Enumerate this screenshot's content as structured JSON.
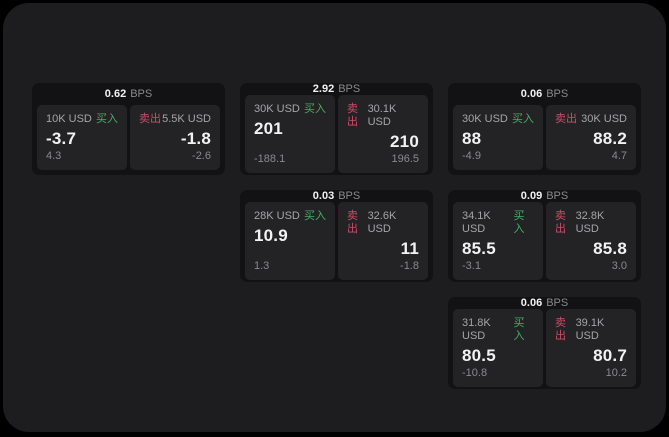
{
  "labels": {
    "bps_unit": "BPS",
    "buy": "买入",
    "sell": "卖出"
  },
  "colors": {
    "page_bg": "#000000",
    "panel_bg": "#1d1d1f",
    "card_bg": "#121214",
    "subpanel_bg": "#232326",
    "text_primary": "#f2f2f3",
    "text_secondary": "#a5a5a8",
    "text_muted": "#8a8a8e",
    "buy": "#3fb15f",
    "sell": "#cf4b66"
  },
  "cards": [
    {
      "col": 1,
      "row": 1,
      "bps": "0.62",
      "buy": {
        "amount": "10K USD",
        "value": "-3.7",
        "delta": "4.3"
      },
      "sell": {
        "amount": "5.5K USD",
        "value": "-1.8",
        "delta": "-2.6"
      }
    },
    {
      "col": 2,
      "row": 1,
      "bps": "2.92",
      "buy": {
        "amount": "30K USD",
        "value": "201",
        "delta": "-188.1"
      },
      "sell": {
        "amount": "30.1K USD",
        "value": "210",
        "delta": "196.5"
      }
    },
    {
      "col": 3,
      "row": 1,
      "bps": "0.06",
      "buy": {
        "amount": "30K USD",
        "value": "88",
        "delta": "-4.9"
      },
      "sell": {
        "amount": "30K USD",
        "value": "88.2",
        "delta": "4.7"
      }
    },
    {
      "col": 2,
      "row": 2,
      "bps": "0.03",
      "buy": {
        "amount": "28K USD",
        "value": "10.9",
        "delta": "1.3"
      },
      "sell": {
        "amount": "32.6K USD",
        "value": "11",
        "delta": "-1.8"
      }
    },
    {
      "col": 3,
      "row": 2,
      "bps": "0.09",
      "buy": {
        "amount": "34.1K USD",
        "value": "85.5",
        "delta": "-3.1"
      },
      "sell": {
        "amount": "32.8K USD",
        "value": "85.8",
        "delta": "3.0"
      }
    },
    {
      "col": 3,
      "row": 3,
      "bps": "0.06",
      "buy": {
        "amount": "31.8K USD",
        "value": "80.5",
        "delta": "-10.8"
      },
      "sell": {
        "amount": "39.1K USD",
        "value": "80.7",
        "delta": "10.2"
      }
    }
  ]
}
